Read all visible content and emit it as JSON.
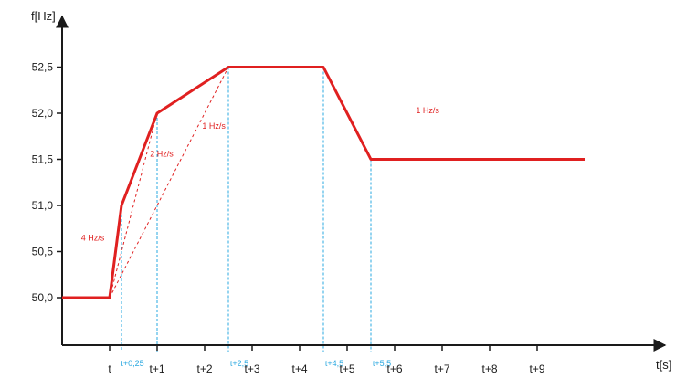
{
  "chart_data": {
    "type": "line",
    "ylabel": "f[Hz]",
    "xlabel": "t[s]",
    "ylim": [
      49.5,
      53.2
    ],
    "xlim": [
      -1.0,
      11.8
    ],
    "yticks": [
      {
        "value": 50.0,
        "label": "50,0"
      },
      {
        "value": 50.5,
        "label": "50,5"
      },
      {
        "value": 51.0,
        "label": "51,0"
      },
      {
        "value": 51.5,
        "label": "51,5"
      },
      {
        "value": 52.0,
        "label": "52,0"
      },
      {
        "value": 52.5,
        "label": "52,5"
      }
    ],
    "xticks": [
      {
        "value": 0,
        "label": "t"
      },
      {
        "value": 1,
        "label": "t+1"
      },
      {
        "value": 2,
        "label": "t+2"
      },
      {
        "value": 3,
        "label": "t+3"
      },
      {
        "value": 4,
        "label": "t+4"
      },
      {
        "value": 5,
        "label": "t+5"
      },
      {
        "value": 6,
        "label": "t+6"
      },
      {
        "value": 7,
        "label": "t+7"
      },
      {
        "value": 8,
        "label": "t+8"
      },
      {
        "value": 9,
        "label": "t+9"
      }
    ],
    "series": [
      {
        "color": "#e02020",
        "x": [
          -1.0,
          0.0,
          0.25,
          1.0,
          2.5,
          4.5,
          5.5,
          10.0
        ],
        "y": [
          50.0,
          50.0,
          51.0,
          52.0,
          52.5,
          52.5,
          51.5,
          51.5
        ]
      }
    ],
    "guide_lines": [
      {
        "from": [
          0.0,
          50.0
        ],
        "to": [
          1.0,
          52.0
        ]
      },
      {
        "from": [
          0.0,
          50.0
        ],
        "to": [
          2.5,
          52.5
        ]
      }
    ],
    "markers": [
      {
        "x": 0.25,
        "label": "t+0,25"
      },
      {
        "x": 1.0,
        "label": ""
      },
      {
        "x": 2.5,
        "label": "t+2,5"
      },
      {
        "x": 4.5,
        "label": "t+4,5"
      },
      {
        "x": 5.5,
        "label": "t+5,5"
      }
    ],
    "annotations": [
      {
        "text": "4 Hz/s",
        "x": -0.6,
        "y": 50.62
      },
      {
        "text": "2 Hz/s",
        "x": 0.85,
        "y": 51.53
      },
      {
        "text": "1 Hz/s",
        "x": 1.95,
        "y": 51.83
      },
      {
        "text": "1 Hz/s",
        "x": 6.45,
        "y": 52.0
      }
    ],
    "colors": {
      "line": "#e02020",
      "guide": "#e02020",
      "marker": "#2aa8e0",
      "axis": "#1a1a1a"
    }
  }
}
